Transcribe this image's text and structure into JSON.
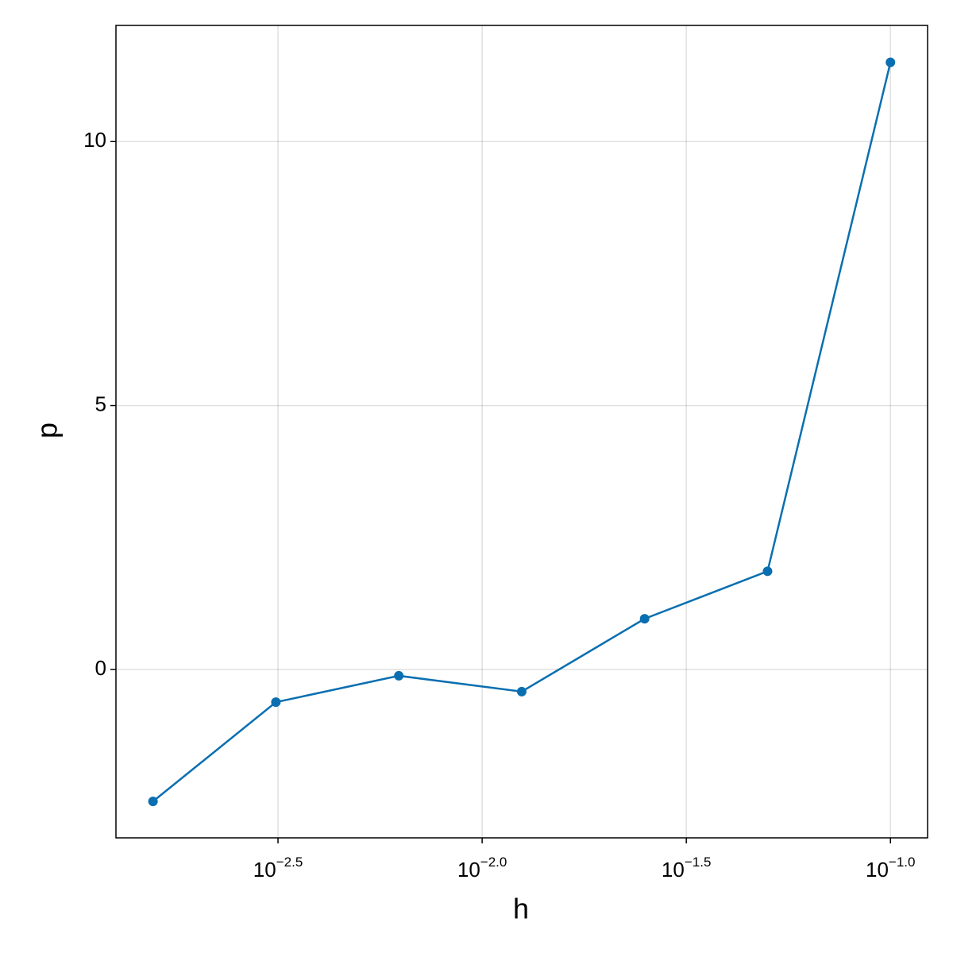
{
  "chart_data": {
    "type": "line",
    "x_label": "h",
    "y_label": "p",
    "x": [
      0.0015625,
      0.003125,
      0.00625,
      0.0125,
      0.025,
      0.05,
      0.1
    ],
    "series": [
      {
        "color": "#0a6fb0",
        "values": [
          -2.5,
          -0.62,
          -0.12,
          -0.42,
          0.96,
          1.86,
          11.5
        ]
      }
    ],
    "xscale": "log",
    "xlim": [
      0.001268,
      0.1233
    ],
    "xticks": [
      {
        "value": 0.0031623,
        "label": "10",
        "exponent": "−2.5"
      },
      {
        "value": 0.01,
        "label": "10",
        "exponent": "−2.0"
      },
      {
        "value": 0.031623,
        "label": "10",
        "exponent": "−1.5"
      },
      {
        "value": 0.1,
        "label": "10",
        "exponent": "−1.0"
      }
    ],
    "ylim": [
      -3.19,
      12.2
    ],
    "yticks": [
      0,
      5,
      10
    ],
    "grid": true
  }
}
